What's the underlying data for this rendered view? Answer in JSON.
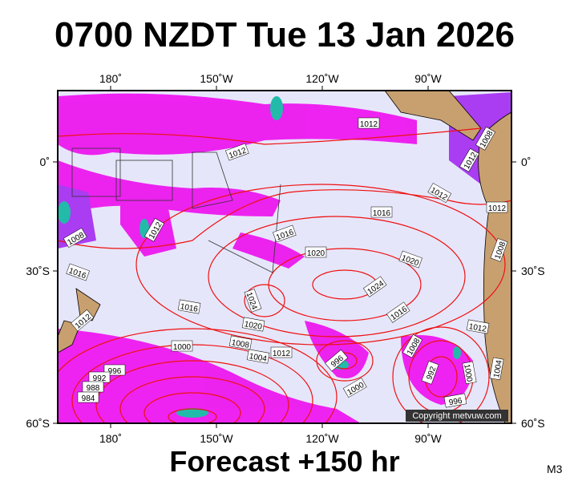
{
  "header": {
    "title": "0700 NZDT Tue 13 Jan 2026"
  },
  "axes": {
    "top": [
      "180˚",
      "150˚W",
      "120˚W",
      "90˚W"
    ],
    "bottom": [
      "180˚",
      "150˚W",
      "120˚W",
      "90˚W"
    ],
    "left": [
      "0˚",
      "30˚S",
      "60˚S"
    ],
    "right": [
      "0˚",
      "30˚S",
      "60˚S"
    ]
  },
  "isobars": {
    "labels": [
      "1012",
      "1012",
      "1012",
      "1016",
      "1016",
      "1020",
      "1020",
      "1024",
      "1024",
      "1016",
      "1020",
      "1016",
      "1012",
      "1008",
      "1016",
      "1012",
      "1012",
      "1000",
      "1008",
      "1004",
      "1012",
      "996",
      "1000",
      "1008",
      "992",
      "1000",
      "1004",
      "996",
      "996",
      "992",
      "988",
      "984",
      "1012",
      "1008",
      "1012",
      "1008"
    ]
  },
  "copyright": "Copyright metvuw.com",
  "footer": {
    "text": "Forecast +150 hr",
    "model": "M3"
  }
}
